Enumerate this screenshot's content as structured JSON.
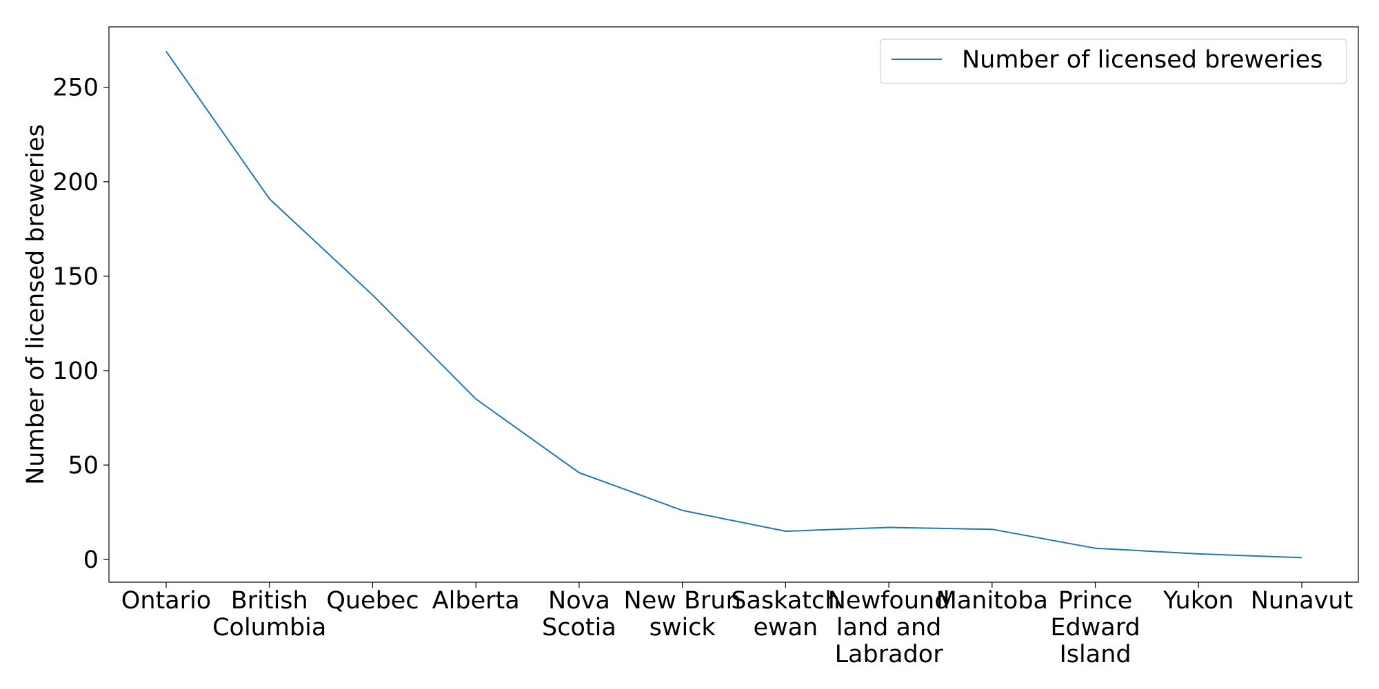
{
  "chart_data": {
    "type": "line",
    "title": "",
    "xlabel": "",
    "ylabel": "Number of licensed breweries",
    "categories": [
      [
        "Ontario"
      ],
      [
        "British",
        "Columbia"
      ],
      [
        "Quebec"
      ],
      [
        "Alberta"
      ],
      [
        "Nova",
        "Scotia"
      ],
      [
        "New Brun",
        "swick"
      ],
      [
        "Saskatch",
        "ewan"
      ],
      [
        "Newfound",
        "land and",
        "Labrador"
      ],
      [
        "Manitoba"
      ],
      [
        "Prince",
        "Edward",
        "Island"
      ],
      [
        "Yukon"
      ],
      [
        "Nunavut"
      ]
    ],
    "series": [
      {
        "name": "Number of licensed breweries",
        "color": "#1f77b4",
        "values": [
          269,
          191,
          140,
          85,
          46,
          26,
          15,
          17,
          16,
          6,
          3,
          1
        ]
      }
    ],
    "ylim": [
      -12,
      282
    ],
    "yticks": [
      0,
      50,
      100,
      150,
      200,
      250
    ],
    "grid": false,
    "legend": "top-right"
  }
}
